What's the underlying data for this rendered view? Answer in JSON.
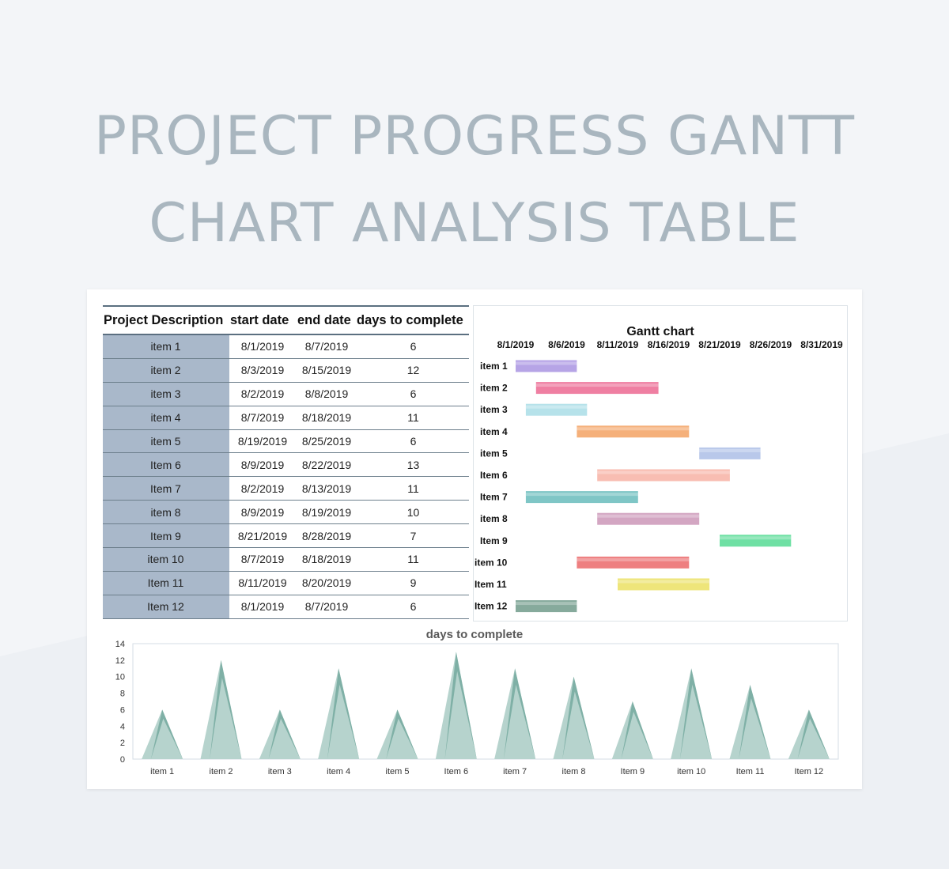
{
  "page": {
    "title_line1": "PROJECT PROGRESS GANTT",
    "title_line2": "CHART ANALYSIS TABLE"
  },
  "colors": {
    "background": "#f3f5f8",
    "title": "#a9b6bf",
    "name_cell": "#a9b8ca",
    "rule": "#5b6f80",
    "area_fill": "#7fb0a6",
    "area_highlight": "#b6d3cd"
  },
  "table": {
    "headers": [
      "Project Description",
      "start date",
      "end date",
      "days to complete"
    ],
    "rows": [
      {
        "name": "item 1",
        "start": "8/1/2019",
        "end": "8/7/2019",
        "days": "6"
      },
      {
        "name": "item 2",
        "start": "8/3/2019",
        "end": "8/15/2019",
        "days": "12"
      },
      {
        "name": "item 3",
        "start": "8/2/2019",
        "end": "8/8/2019",
        "days": "6"
      },
      {
        "name": "item 4",
        "start": "8/7/2019",
        "end": "8/18/2019",
        "days": "11"
      },
      {
        "name": "item 5",
        "start": "8/19/2019",
        "end": "8/25/2019",
        "days": "6"
      },
      {
        "name": "Item 6",
        "start": "8/9/2019",
        "end": "8/22/2019",
        "days": "13"
      },
      {
        "name": "Item 7",
        "start": "8/2/2019",
        "end": "8/13/2019",
        "days": "11"
      },
      {
        "name": "item 8",
        "start": "8/9/2019",
        "end": "8/19/2019",
        "days": "10"
      },
      {
        "name": "Item 9",
        "start": "8/21/2019",
        "end": "8/28/2019",
        "days": "7"
      },
      {
        "name": "item 10",
        "start": "8/7/2019",
        "end": "8/18/2019",
        "days": "11"
      },
      {
        "name": "Item 11",
        "start": "8/11/2019",
        "end": "8/20/2019",
        "days": "9"
      },
      {
        "name": "Item 12",
        "start": "8/1/2019",
        "end": "8/7/2019",
        "days": "6"
      }
    ]
  },
  "chart_data": [
    {
      "type": "bar",
      "orientation": "horizontal-gantt",
      "title": "Gantt chart",
      "x_ticks": [
        "8/1/2019",
        "8/6/2019",
        "8/11/2019",
        "8/16/2019",
        "8/21/2019",
        "8/26/2019",
        "8/31/2019"
      ],
      "x_range": [
        "2019-08-01",
        "2019-08-31"
      ],
      "x_tick_step_days": 5,
      "grid": false,
      "tasks": [
        {
          "label": "item 1",
          "start": "2019-08-01",
          "end": "2019-08-07",
          "color": "#b6a4e6"
        },
        {
          "label": "item 2",
          "start": "2019-08-03",
          "end": "2019-08-15",
          "color": "#ef7fa2"
        },
        {
          "label": "item 3",
          "start": "2019-08-02",
          "end": "2019-08-08",
          "color": "#b6e2ea"
        },
        {
          "label": "item 4",
          "start": "2019-08-07",
          "end": "2019-08-18",
          "color": "#f5b07a"
        },
        {
          "label": "item 5",
          "start": "2019-08-19",
          "end": "2019-08-25",
          "color": "#b9c8ea"
        },
        {
          "label": "Item 6",
          "start": "2019-08-09",
          "end": "2019-08-22",
          "color": "#f8bdb2"
        },
        {
          "label": "Item 7",
          "start": "2019-08-02",
          "end": "2019-08-13",
          "color": "#7fc6c6"
        },
        {
          "label": "item 8",
          "start": "2019-08-09",
          "end": "2019-08-19",
          "color": "#d3a6c2"
        },
        {
          "label": "Item 9",
          "start": "2019-08-21",
          "end": "2019-08-28",
          "color": "#6fe0a4"
        },
        {
          "label": "item 10",
          "start": "2019-08-07",
          "end": "2019-08-18",
          "color": "#ee7f80"
        },
        {
          "label": "Item 11",
          "start": "2019-08-11",
          "end": "2019-08-20",
          "color": "#eee57a"
        },
        {
          "label": "Item 12",
          "start": "2019-08-01",
          "end": "2019-08-07",
          "color": "#86aa9c"
        }
      ]
    },
    {
      "type": "area",
      "style": "triangle-peaks",
      "title": "days to complete",
      "categories": [
        "item 1",
        "item 2",
        "item 3",
        "item 4",
        "item 5",
        "Item 6",
        "item 7",
        "item 8",
        "Item 9",
        "item 10",
        "Item 11",
        "Item 12"
      ],
      "values": [
        6,
        12,
        6,
        11,
        6,
        13,
        11,
        10,
        7,
        11,
        9,
        6
      ],
      "ylim": [
        0,
        14
      ],
      "y_ticks": [
        0,
        2,
        4,
        6,
        8,
        10,
        12,
        14
      ],
      "grid": false
    }
  ]
}
